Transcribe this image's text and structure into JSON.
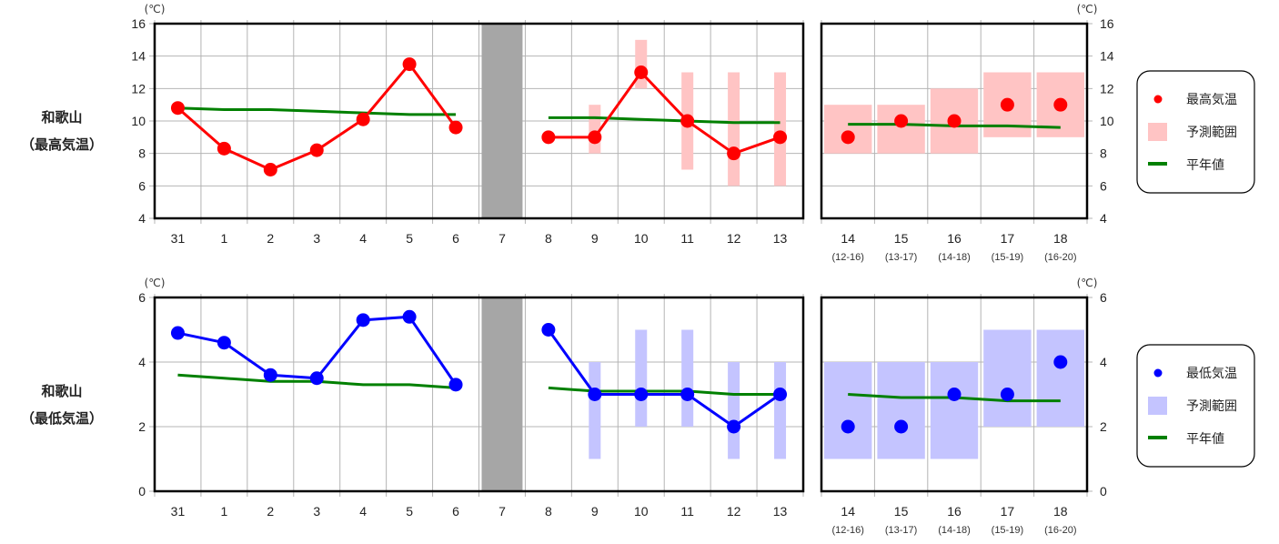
{
  "chart_data": [
    {
      "type": "line",
      "station": "和歌山",
      "element": "（最高気温）",
      "unit": "(℃)",
      "ylim": [
        4,
        16
      ],
      "yticks": [
        "4",
        "6",
        "8",
        "10",
        "12",
        "14",
        "16"
      ],
      "categories": [
        "31",
        "1",
        "2",
        "3",
        "4",
        "5",
        "6",
        "7",
        "8",
        "9",
        "10",
        "11",
        "12",
        "13"
      ],
      "observed": [
        10.8,
        8.3,
        7.0,
        8.2,
        10.1,
        13.5,
        9.6,
        null,
        null,
        null,
        null,
        null,
        null,
        null
      ],
      "forecast": [
        null,
        null,
        null,
        null,
        null,
        null,
        null,
        null,
        9,
        9,
        13,
        10,
        8,
        9
      ],
      "range_low": [
        null,
        null,
        null,
        null,
        null,
        null,
        null,
        null,
        null,
        8,
        12,
        7,
        6,
        6
      ],
      "range_high": [
        null,
        null,
        null,
        null,
        null,
        null,
        null,
        null,
        null,
        11,
        15,
        13,
        13,
        13
      ],
      "normal": [
        10.8,
        10.7,
        10.7,
        10.6,
        10.5,
        10.4,
        10.4,
        null,
        10.2,
        10.2,
        10.1,
        10.0,
        9.9,
        9.9
      ],
      "missing_category": "7",
      "weekly": {
        "categories": [
          "14",
          "15",
          "16",
          "17",
          "18"
        ],
        "periods": [
          "(12-16)",
          "(13-17)",
          "(14-18)",
          "(15-19)",
          "(16-20)"
        ],
        "values": [
          9,
          10,
          10,
          11,
          11
        ],
        "range_low": [
          8,
          8,
          8,
          9,
          9
        ],
        "range_high": [
          11,
          11,
          12,
          13,
          13
        ],
        "normal": [
          9.8,
          9.8,
          9.7,
          9.7,
          9.6
        ]
      },
      "legend": [
        "最高気温",
        "予測範囲",
        "平年値"
      ],
      "colors": {
        "point": "#ff0000",
        "range": "#ffc4c4",
        "normal": "#008000",
        "missing": "#a6a6a6"
      },
      "grid": true
    },
    {
      "type": "line",
      "station": "和歌山",
      "element": "（最低気温）",
      "unit": "(℃)",
      "ylim": [
        0,
        6
      ],
      "yticks": [
        "0",
        "2",
        "4",
        "6"
      ],
      "categories": [
        "31",
        "1",
        "2",
        "3",
        "4",
        "5",
        "6",
        "7",
        "8",
        "9",
        "10",
        "11",
        "12",
        "13"
      ],
      "observed": [
        4.9,
        4.6,
        3.6,
        3.5,
        5.3,
        5.4,
        3.3,
        null,
        null,
        null,
        null,
        null,
        null,
        null
      ],
      "forecast": [
        null,
        null,
        null,
        null,
        null,
        null,
        null,
        null,
        5,
        3,
        3,
        3,
        2,
        3
      ],
      "range_low": [
        null,
        null,
        null,
        null,
        null,
        null,
        null,
        null,
        null,
        1,
        2,
        2,
        1,
        1
      ],
      "range_high": [
        null,
        null,
        null,
        null,
        null,
        null,
        null,
        null,
        null,
        4,
        5,
        5,
        4,
        4
      ],
      "normal": [
        3.6,
        3.5,
        3.4,
        3.4,
        3.3,
        3.3,
        3.2,
        null,
        3.2,
        3.1,
        3.1,
        3.1,
        3.0,
        3.0
      ],
      "missing_category": "7",
      "weekly": {
        "categories": [
          "14",
          "15",
          "16",
          "17",
          "18"
        ],
        "periods": [
          "(12-16)",
          "(13-17)",
          "(14-18)",
          "(15-19)",
          "(16-20)"
        ],
        "values": [
          2,
          2,
          3,
          3,
          4
        ],
        "range_low": [
          1,
          1,
          1,
          2,
          2
        ],
        "range_high": [
          4,
          4,
          4,
          5,
          5
        ],
        "normal": [
          3.0,
          2.9,
          2.9,
          2.8,
          2.8
        ]
      },
      "legend": [
        "最低気温",
        "予測範囲",
        "平年値"
      ],
      "colors": {
        "point": "#0000ff",
        "range": "#c4c4ff",
        "normal": "#008000",
        "missing": "#a6a6a6"
      },
      "grid": true
    }
  ]
}
